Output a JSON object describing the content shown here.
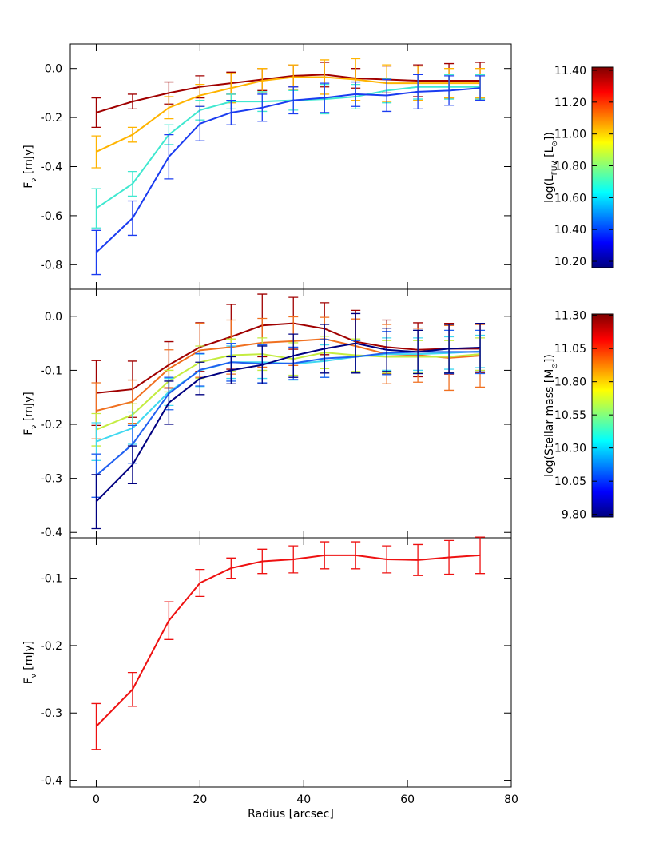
{
  "chart_data": [
    {
      "type": "line",
      "ylabel": [
        "F",
        "ν",
        " [mJy]"
      ],
      "x": [
        0,
        7,
        14,
        20,
        26,
        32,
        38,
        44,
        50,
        56,
        62,
        68,
        74
      ],
      "xlim": [
        -5,
        80
      ],
      "xticks": [
        0,
        20,
        40,
        60,
        80
      ],
      "ylim": [
        -0.9,
        0.1
      ],
      "yticks": [
        {
          "value": 0,
          "label": "0.0"
        },
        -0.2,
        -0.4,
        -0.6,
        -0.8
      ],
      "series": [
        {
          "color": "#a00000",
          "values": [
            -0.18,
            -0.135,
            -0.1,
            -0.075,
            -0.06,
            -0.045,
            -0.03,
            -0.025,
            -0.04,
            -0.045,
            -0.05,
            -0.05,
            -0.05
          ],
          "errors": [
            0.06,
            0.03,
            0.045,
            0.045,
            0.045,
            0.045,
            0.045,
            0.05,
            0.04,
            0.055,
            0.065,
            0.07,
            0.075
          ]
        },
        {
          "color": "#ffb400",
          "values": [
            -0.34,
            -0.27,
            -0.16,
            -0.11,
            -0.08,
            -0.05,
            -0.035,
            -0.035,
            -0.045,
            -0.06,
            -0.06,
            -0.06,
            -0.06
          ],
          "errors": [
            0.065,
            0.03,
            0.045,
            0.045,
            0.06,
            0.05,
            0.05,
            0.07,
            0.085,
            0.075,
            0.07,
            0.06,
            0.06
          ]
        },
        {
          "color": "#40e8d0",
          "values": [
            -0.57,
            -0.47,
            -0.27,
            -0.17,
            -0.135,
            -0.135,
            -0.13,
            -0.125,
            -0.115,
            -0.09,
            -0.075,
            -0.075,
            -0.075
          ],
          "errors": [
            0.08,
            0.05,
            0.04,
            0.04,
            0.03,
            0.04,
            0.04,
            0.06,
            0.05,
            0.05,
            0.05,
            0.05,
            0.05
          ]
        },
        {
          "color": "#1a3cf0",
          "values": [
            -0.75,
            -0.61,
            -0.36,
            -0.225,
            -0.18,
            -0.16,
            -0.13,
            -0.12,
            -0.105,
            -0.11,
            -0.095,
            -0.09,
            -0.08
          ],
          "errors": [
            0.09,
            0.07,
            0.09,
            0.07,
            0.05,
            0.055,
            0.055,
            0.06,
            0.05,
            0.065,
            0.07,
            0.06,
            0.05
          ]
        }
      ],
      "colorbar": {
        "label": [
          "log(L",
          "FUV",
          " [L",
          "⊙",
          "])"
        ],
        "lim": [
          10.16,
          11.42
        ],
        "ticks": [
          {
            "value": 10.2,
            "label": "10.20"
          },
          {
            "value": 10.4,
            "label": "10.40"
          },
          {
            "value": 10.6,
            "label": "10.60"
          },
          {
            "value": 10.8,
            "label": "10.80"
          },
          {
            "value": 11.0,
            "label": "11.00"
          },
          {
            "value": 11.2,
            "label": "11.20"
          },
          {
            "value": 11.4,
            "label": "11.40"
          }
        ]
      }
    },
    {
      "type": "line",
      "ylabel": [
        "F",
        "ν",
        " [mJy]"
      ],
      "x": [
        0,
        7,
        14,
        20,
        26,
        32,
        38,
        44,
        50,
        56,
        62,
        68,
        74
      ],
      "xlim": [
        -5,
        80
      ],
      "xticks": [
        0,
        20,
        40,
        60,
        80
      ],
      "ylim": [
        -0.41,
        0.05
      ],
      "yticks": [
        {
          "value": 0,
          "label": "0.0"
        },
        -0.1,
        -0.2,
        -0.3,
        -0.4
      ],
      "series": [
        {
          "color": "#a00000",
          "values": [
            -0.142,
            -0.135,
            -0.09,
            -0.057,
            -0.038,
            -0.017,
            -0.013,
            -0.023,
            -0.047,
            -0.057,
            -0.062,
            -0.06,
            -0.06
          ],
          "errors": [
            0.06,
            0.052,
            0.043,
            0.045,
            0.06,
            0.058,
            0.048,
            0.048,
            0.058,
            0.05,
            0.05,
            0.047,
            0.045
          ]
        },
        {
          "color": "#f07020",
          "values": [
            -0.175,
            -0.158,
            -0.097,
            -0.063,
            -0.057,
            -0.049,
            -0.046,
            -0.042,
            -0.055,
            -0.07,
            -0.072,
            -0.077,
            -0.073
          ],
          "errors": [
            0.052,
            0.04,
            0.035,
            0.05,
            0.05,
            0.045,
            0.045,
            0.04,
            0.05,
            0.055,
            0.05,
            0.06,
            0.058
          ]
        },
        {
          "color": "#c4ec40",
          "values": [
            -0.21,
            -0.182,
            -0.12,
            -0.085,
            -0.072,
            -0.07,
            -0.079,
            -0.067,
            -0.072,
            -0.075,
            -0.075,
            -0.075,
            -0.07
          ],
          "errors": [
            0.03,
            0.02,
            0.02,
            0.03,
            0.03,
            0.03,
            0.03,
            0.03,
            0.03,
            0.03,
            0.03,
            0.03,
            0.03
          ]
        },
        {
          "color": "#40d8f0",
          "values": [
            -0.232,
            -0.207,
            -0.14,
            -0.1,
            -0.085,
            -0.085,
            -0.088,
            -0.083,
            -0.075,
            -0.07,
            -0.07,
            -0.068,
            -0.065
          ],
          "errors": [
            0.035,
            0.03,
            0.025,
            0.03,
            0.03,
            0.03,
            0.03,
            0.03,
            0.03,
            0.03,
            0.03,
            0.03,
            0.03
          ]
        },
        {
          "color": "#2060f0",
          "values": [
            -0.295,
            -0.237,
            -0.143,
            -0.099,
            -0.085,
            -0.088,
            -0.087,
            -0.078,
            -0.075,
            -0.068,
            -0.066,
            -0.066,
            -0.066
          ],
          "errors": [
            0.04,
            0.035,
            0.03,
            0.03,
            0.035,
            0.035,
            0.03,
            0.035,
            0.03,
            0.04,
            0.04,
            0.04,
            0.04
          ]
        },
        {
          "color": "#000080",
          "values": [
            -0.343,
            -0.275,
            -0.16,
            -0.115,
            -0.1,
            -0.09,
            -0.073,
            -0.06,
            -0.05,
            -0.062,
            -0.066,
            -0.06,
            -0.058
          ],
          "errors": [
            0.05,
            0.035,
            0.04,
            0.03,
            0.025,
            0.035,
            0.04,
            0.045,
            0.055,
            0.04,
            0.04,
            0.045,
            0.045
          ]
        }
      ],
      "colorbar": {
        "label": [
          "log(Stellar mass [M",
          "⊙",
          "])"
        ],
        "lim": [
          9.78,
          11.31
        ],
        "ticks": [
          {
            "value": 9.8,
            "label": "9.80"
          },
          {
            "value": 10.05,
            "label": "10.05"
          },
          {
            "value": 10.3,
            "label": "10.30"
          },
          {
            "value": 10.55,
            "label": "10.55"
          },
          {
            "value": 10.8,
            "label": "10.80"
          },
          {
            "value": 11.05,
            "label": "11.05"
          },
          {
            "value": 11.3,
            "label": "11.30"
          }
        ]
      }
    },
    {
      "type": "line",
      "ylabel": [
        "F",
        "ν",
        " [mJy]"
      ],
      "xlabel": "Radius [arcsec]",
      "x": [
        0,
        7,
        14,
        20,
        26,
        32,
        38,
        44,
        50,
        56,
        62,
        68,
        74
      ],
      "xlim": [
        -5,
        80
      ],
      "xticks": [
        0,
        20,
        40,
        60,
        80
      ],
      "ylim": [
        -0.41,
        -0.04
      ],
      "yticks": [
        -0.1,
        -0.2,
        -0.3,
        -0.4
      ],
      "series": [
        {
          "color": "#ee1111",
          "values": [
            -0.32,
            -0.265,
            -0.163,
            -0.107,
            -0.085,
            -0.075,
            -0.072,
            -0.066,
            -0.066,
            -0.072,
            -0.073,
            -0.069,
            -0.066
          ],
          "errors": [
            0.034,
            0.025,
            0.028,
            0.02,
            0.015,
            0.018,
            0.02,
            0.02,
            0.02,
            0.02,
            0.023,
            0.025,
            0.027
          ]
        }
      ]
    }
  ]
}
